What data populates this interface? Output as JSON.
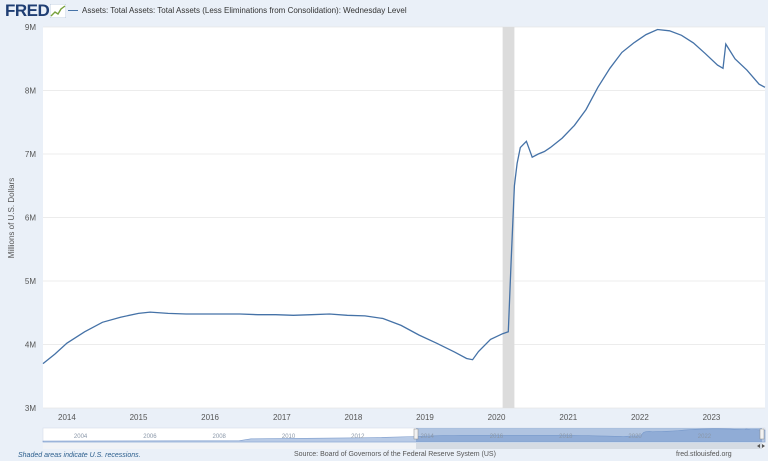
{
  "header": {
    "logo_text": "FRED",
    "legend_label": "Assets: Total Assets: Total Assets (Less Eliminations from Consolidation): Wednesday Level"
  },
  "colors": {
    "series": "#4572a7",
    "recession": "#dcdcdc",
    "navigator": "#7d9ccc",
    "grid": "#e6e6e6"
  },
  "chart_data": {
    "type": "line",
    "title": "Assets: Total Assets: Total Assets (Less Eliminations from Consolidation): Wednesday Level",
    "ylabel": "Millions of U.S. Dollars",
    "xlabel": "",
    "xlim": [
      "2013-09-01",
      "2023-10-01"
    ],
    "ylim": [
      3000000,
      9000000
    ],
    "y_ticks": [
      {
        "value": 3000000,
        "label": "3M"
      },
      {
        "value": 4000000,
        "label": "4M"
      },
      {
        "value": 5000000,
        "label": "5M"
      },
      {
        "value": 6000000,
        "label": "6M"
      },
      {
        "value": 7000000,
        "label": "7M"
      },
      {
        "value": 8000000,
        "label": "8M"
      },
      {
        "value": 9000000,
        "label": "9M"
      }
    ],
    "x_ticks": [
      "2014",
      "2015",
      "2016",
      "2017",
      "2018",
      "2019",
      "2020",
      "2021",
      "2022",
      "2023"
    ],
    "grid": true,
    "recession_bands": [
      {
        "start": "2020-02-01",
        "end": "2020-04-01"
      }
    ],
    "series": [
      {
        "name": "",
        "x": [
          "2013-09-01",
          "2013-11-01",
          "2014-01-01",
          "2014-04-01",
          "2014-07-01",
          "2014-10-01",
          "2015-01-01",
          "2015-03-01",
          "2015-06-01",
          "2015-09-01",
          "2015-12-01",
          "2016-03-01",
          "2016-06-01",
          "2016-09-01",
          "2016-12-01",
          "2017-03-01",
          "2017-06-01",
          "2017-09-01",
          "2017-12-01",
          "2018-03-01",
          "2018-06-01",
          "2018-09-01",
          "2018-12-01",
          "2019-03-01",
          "2019-06-01",
          "2019-08-01",
          "2019-09-01",
          "2019-10-01",
          "2019-12-01",
          "2020-02-01",
          "2020-03-01",
          "2020-03-15",
          "2020-04-01",
          "2020-04-15",
          "2020-05-01",
          "2020-06-01",
          "2020-07-01",
          "2020-08-01",
          "2020-09-01",
          "2020-10-01",
          "2020-12-01",
          "2021-02-01",
          "2021-04-01",
          "2021-06-01",
          "2021-08-01",
          "2021-10-01",
          "2021-12-01",
          "2022-02-01",
          "2022-04-01",
          "2022-06-01",
          "2022-08-01",
          "2022-10-01",
          "2022-12-01",
          "2023-02-01",
          "2023-03-01",
          "2023-03-15",
          "2023-05-01",
          "2023-07-01",
          "2023-09-01",
          "2023-10-01"
        ],
        "y": [
          3700000,
          3850000,
          4020000,
          4200000,
          4350000,
          4430000,
          4490000,
          4510000,
          4490000,
          4480000,
          4480000,
          4480000,
          4480000,
          4470000,
          4470000,
          4460000,
          4470000,
          4480000,
          4460000,
          4450000,
          4410000,
          4300000,
          4150000,
          4020000,
          3880000,
          3780000,
          3760000,
          3890000,
          4080000,
          4170000,
          4200000,
          5300000,
          6500000,
          6850000,
          7100000,
          7200000,
          6950000,
          7000000,
          7040000,
          7100000,
          7250000,
          7450000,
          7700000,
          8050000,
          8350000,
          8600000,
          8750000,
          8880000,
          8960000,
          8940000,
          8870000,
          8750000,
          8580000,
          8400000,
          8350000,
          8730000,
          8500000,
          8320000,
          8100000,
          8050000
        ]
      }
    ]
  },
  "navigator": {
    "labels": [
      "2004",
      "2006",
      "2008",
      "2010",
      "2012",
      "2014",
      "2016",
      "2018",
      "2020",
      "2022"
    ]
  },
  "footer": {
    "recession_note": "Shaded areas indicate U.S. recessions.",
    "source": "Source: Board of Governors of the Federal Reserve System (US)",
    "site": "fred.stlouisfed.org"
  }
}
